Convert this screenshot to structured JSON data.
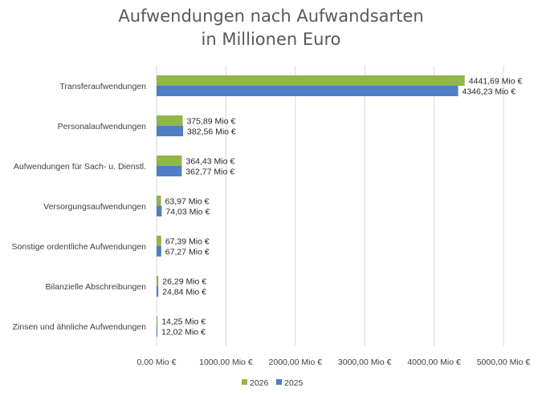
{
  "chart_data": {
    "type": "bar",
    "orientation": "horizontal",
    "title_lines": [
      "Aufwendungen nach Aufwandsarten",
      "in Millionen Euro"
    ],
    "categories": [
      "Transferaufwendungen",
      "Personalaufwendungen",
      "Aufwendungen für Sach- u. Dienstl.",
      "Versorgungsaufwendungen",
      "Sonstige ordentliche Aufwendungen",
      "Bilanzielle Abschreibungen",
      "Zinsen und ähnliche Aufwendungen"
    ],
    "series": [
      {
        "name": "2026",
        "color": "#8fb74a",
        "values": [
          4441.69,
          375.89,
          364.43,
          63.97,
          67.39,
          26.29,
          14.25
        ],
        "labels": [
          "4441,69 Mio €",
          "375,89 Mio €",
          "364,43 Mio €",
          "63,97 Mio €",
          "67,39 Mio €",
          "26,29 Mio €",
          "14,25 Mio €"
        ]
      },
      {
        "name": "2025",
        "color": "#4f7fc4",
        "values": [
          4346.23,
          382.56,
          362.77,
          74.03,
          67.27,
          24.84,
          12.02
        ],
        "labels": [
          "4346,23 Mio €",
          "382,56 Mio €",
          "362,77 Mio €",
          "74,03 Mio €",
          "67,27 Mio €",
          "24,84 Mio €",
          "12,02 Mio €"
        ]
      }
    ],
    "xlim": [
      0,
      5000
    ],
    "x_ticks": [
      0,
      1000,
      2000,
      3000,
      4000,
      5000
    ],
    "x_tick_labels": [
      "0,00 Mio €",
      "1000,00 Mio €",
      "2000,00 Mio €",
      "3000,00 Mio €",
      "4000,00 Mio €",
      "5000,00 Mio €"
    ],
    "grid": true,
    "legend_position": "bottom"
  }
}
